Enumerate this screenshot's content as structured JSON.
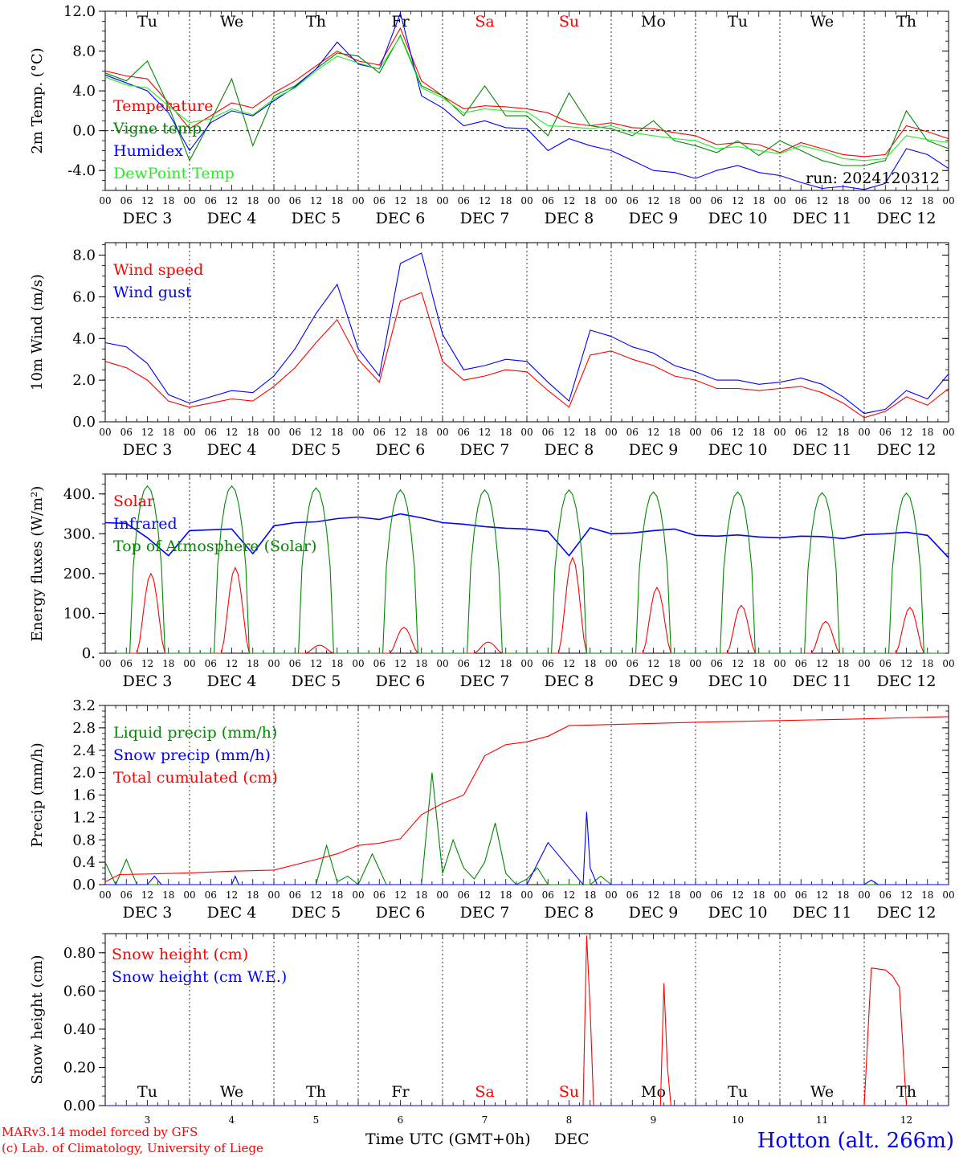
{
  "days": [
    "Tu",
    "We",
    "Th",
    "Fr",
    "Sa",
    "Su",
    "Mo",
    "Tu",
    "We",
    "Th"
  ],
  "weekend_day_indices": [
    4,
    5
  ],
  "hour_ticks": [
    "00",
    "06",
    "12",
    "18"
  ],
  "hour_end": "00",
  "dates": [
    "DEC  3",
    "DEC  4",
    "DEC  5",
    "DEC  6",
    "DEC  7",
    "DEC  8",
    "DEC  9",
    "DEC 10",
    "DEC 11",
    "DEC 12"
  ],
  "date_numbers": [
    "3",
    "4",
    "5",
    "6",
    "7",
    "8",
    "9",
    "10",
    "11",
    "12"
  ],
  "colors": {
    "red": "#ff0000",
    "green": "#008800",
    "blue": "#0000ff",
    "lightgreen": "#22ee22",
    "grid": "#000000"
  },
  "run_label": "run: 2024120312",
  "x_axis_label": "Time UTC (GMT+0h)",
  "x_axis_month": "DEC",
  "credit_line1": "MARv3.14 model forced by GFS",
  "credit_line2": "(c) Lab. of Climatology, University of Liege",
  "station": "Hotton (alt. 266m)",
  "chart_data": [
    {
      "type": "line",
      "id": "temperature",
      "ylabel": "2m Temp. (°C)",
      "ylim": [
        -6.0,
        12.0
      ],
      "yticks": [
        "12.0",
        "8.0",
        "4.0",
        "0.0",
        "-4.0"
      ],
      "ytick_values": [
        12,
        8,
        4,
        0,
        -4
      ],
      "reference_line": 0,
      "x": [
        0,
        6,
        12,
        18,
        24,
        30,
        36,
        42,
        48,
        54,
        60,
        66,
        72,
        78,
        84,
        90,
        96,
        102,
        108,
        114,
        120,
        126,
        132,
        138,
        144,
        150,
        156,
        162,
        168,
        174,
        180,
        186,
        192,
        198,
        204,
        210,
        216,
        222,
        228,
        234,
        240
      ],
      "series": [
        {
          "name": "Temperature",
          "color": "red",
          "values": [
            6.0,
            5.5,
            5.2,
            2.8,
            0.2,
            1.5,
            2.8,
            2.3,
            3.8,
            5.0,
            6.5,
            8.0,
            7.0,
            6.6,
            10.3,
            5.0,
            3.5,
            2.2,
            2.5,
            2.4,
            2.2,
            1.8,
            0.8,
            0.5,
            0.8,
            0.3,
            0.2,
            -0.2,
            -0.5,
            -1.4,
            -1.2,
            -1.4,
            -2.2,
            -1.2,
            -1.8,
            -2.4,
            -2.6,
            -2.4,
            0.5,
            -0.1,
            -0.8
          ]
        },
        {
          "name": "Vigne temp",
          "color": "green",
          "values": [
            5.8,
            5.0,
            7.0,
            2.5,
            -3.0,
            1.0,
            5.2,
            -1.5,
            3.5,
            4.5,
            6.2,
            7.8,
            7.5,
            5.8,
            9.6,
            4.5,
            3.5,
            1.5,
            4.5,
            1.5,
            1.5,
            -0.5,
            3.8,
            0.5,
            0.2,
            -0.5,
            1.0,
            -1.0,
            -1.5,
            -2.2,
            -1.0,
            -2.5,
            -1.0,
            -2.0,
            -3.0,
            -3.5,
            -3.5,
            -3.0,
            2.0,
            -1.0,
            -1.8
          ]
        },
        {
          "name": "Humidex",
          "color": "blue",
          "values": [
            5.6,
            4.8,
            4.0,
            1.8,
            -2.0,
            0.8,
            2.0,
            1.5,
            3.0,
            4.4,
            6.2,
            8.9,
            6.7,
            6.2,
            11.8,
            3.5,
            2.3,
            0.5,
            1.0,
            0.3,
            0.2,
            -2.0,
            -0.8,
            -1.5,
            -2.0,
            -3.0,
            -4.0,
            -4.2,
            -4.8,
            -4.0,
            -3.5,
            -4.2,
            -4.5,
            -5.2,
            -5.8,
            -5.6,
            -5.9,
            -5.3,
            -1.8,
            -2.4,
            -3.8
          ]
        },
        {
          "name": "DewPoint Temp",
          "color": "lightgreen",
          "values": [
            5.4,
            4.6,
            4.3,
            2.5,
            0.8,
            1.2,
            2.2,
            1.6,
            3.2,
            4.3,
            6.0,
            7.5,
            6.8,
            6.2,
            9.5,
            4.3,
            3.3,
            1.8,
            2.2,
            2.0,
            1.9,
            0.5,
            0.4,
            0.2,
            0.5,
            -0.2,
            -0.5,
            -0.8,
            -1.0,
            -1.8,
            -1.6,
            -2.0,
            -2.3,
            -1.5,
            -2.0,
            -2.8,
            -3.0,
            -2.8,
            -0.5,
            -0.9,
            -1.2
          ]
        }
      ]
    },
    {
      "type": "line",
      "id": "wind",
      "ylabel": "10m Wind (m/s)",
      "ylim": [
        0.0,
        8.6
      ],
      "yticks": [
        "8.0",
        "6.0",
        "4.0",
        "2.0",
        "0.0"
      ],
      "ytick_values": [
        8,
        6,
        4,
        2,
        0
      ],
      "reference_line": 5,
      "x": [
        0,
        6,
        12,
        18,
        24,
        30,
        36,
        42,
        48,
        54,
        60,
        66,
        72,
        78,
        84,
        90,
        96,
        102,
        108,
        114,
        120,
        126,
        132,
        138,
        144,
        150,
        156,
        162,
        168,
        174,
        180,
        186,
        192,
        198,
        204,
        210,
        216,
        222,
        228,
        234,
        240
      ],
      "series": [
        {
          "name": "Wind speed",
          "color": "red",
          "values": [
            2.9,
            2.6,
            2.0,
            1.0,
            0.7,
            0.9,
            1.1,
            1.0,
            1.7,
            2.6,
            3.8,
            4.9,
            3.0,
            1.9,
            5.8,
            6.2,
            2.9,
            2.0,
            2.2,
            2.5,
            2.4,
            1.5,
            0.7,
            3.2,
            3.4,
            3.0,
            2.7,
            2.2,
            2.0,
            1.6,
            1.6,
            1.5,
            1.6,
            1.7,
            1.4,
            0.9,
            0.2,
            0.5,
            1.2,
            0.8,
            1.6
          ]
        },
        {
          "name": "Wind gust",
          "color": "blue",
          "values": [
            3.8,
            3.6,
            2.8,
            1.3,
            0.9,
            1.2,
            1.5,
            1.4,
            2.2,
            3.5,
            5.2,
            6.6,
            3.5,
            2.2,
            7.6,
            8.1,
            4.2,
            2.5,
            2.7,
            3.0,
            2.9,
            1.9,
            1.0,
            4.4,
            4.1,
            3.6,
            3.3,
            2.7,
            2.4,
            2.0,
            2.0,
            1.8,
            1.9,
            2.1,
            1.8,
            1.2,
            0.4,
            0.6,
            1.5,
            1.1,
            2.3
          ]
        }
      ]
    },
    {
      "type": "line",
      "id": "energy",
      "ylabel": "Energy fluxes (W/m²)",
      "ylim": [
        0,
        450
      ],
      "yticks": [
        "400.",
        "300.",
        "200.",
        "100.",
        "0."
      ],
      "ytick_values": [
        400,
        300,
        200,
        100,
        0
      ],
      "series": [
        {
          "name": "Solar",
          "color": "red",
          "daily_peaks": [
            200,
            215,
            20,
            65,
            28,
            240,
            165,
            120,
            80,
            115
          ],
          "peak_hour": 13
        },
        {
          "name": "Infrared",
          "color": "blue",
          "x": [
            0,
            6,
            12,
            18,
            24,
            30,
            36,
            42,
            48,
            54,
            60,
            66,
            72,
            78,
            84,
            90,
            96,
            102,
            108,
            114,
            120,
            126,
            132,
            138,
            144,
            150,
            156,
            162,
            168,
            174,
            180,
            186,
            192,
            198,
            204,
            210,
            216,
            222,
            228,
            234,
            240
          ],
          "values": [
            328,
            326,
            290,
            245,
            308,
            310,
            312,
            250,
            320,
            328,
            330,
            338,
            342,
            336,
            350,
            340,
            328,
            324,
            318,
            314,
            312,
            306,
            245,
            315,
            300,
            302,
            308,
            312,
            296,
            294,
            297,
            292,
            290,
            294,
            293,
            288,
            298,
            300,
            304,
            296,
            240
          ]
        },
        {
          "name": "Top of Atmosphere (Solar)",
          "color": "green",
          "daily_peaks": [
            420,
            420,
            415,
            410,
            410,
            410,
            405,
            405,
            403,
            402
          ],
          "peak_hour": 12
        }
      ]
    },
    {
      "type": "line",
      "id": "precip",
      "ylabel": "Precip (mm/h)",
      "ylim": [
        0.0,
        3.2
      ],
      "yticks": [
        "3.2",
        "2.8",
        "2.4",
        "2.0",
        "1.6",
        "1.2",
        "0.8",
        "0.4",
        "0.0"
      ],
      "ytick_values": [
        3.2,
        2.8,
        2.4,
        2.0,
        1.6,
        1.2,
        0.8,
        0.4,
        0.0
      ],
      "series": [
        {
          "name": "Liquid precip (mm/h)",
          "color": "green",
          "x": [
            0,
            3,
            6,
            9,
            12,
            18,
            24,
            60,
            63,
            66,
            69,
            72,
            76,
            80,
            84,
            90,
            93,
            96,
            99,
            102,
            105,
            108,
            111,
            114,
            117,
            120,
            123,
            126,
            132,
            138,
            141,
            144,
            150,
            240
          ],
          "values": [
            0.4,
            0.0,
            0.45,
            0.0,
            0.0,
            0.0,
            0.0,
            0.0,
            0.7,
            0.05,
            0.15,
            0.0,
            0.55,
            0.0,
            0.0,
            0.0,
            2.0,
            0.2,
            0.8,
            0.3,
            0.1,
            0.4,
            1.1,
            0.2,
            0.0,
            0.1,
            0.3,
            0.0,
            0.0,
            0.0,
            0.15,
            0.0,
            0.0,
            0.0
          ]
        },
        {
          "name": "Snow precip (mm/h)",
          "color": "blue",
          "x": [
            0,
            12,
            14,
            16,
            18,
            36,
            37,
            38,
            120,
            126,
            136,
            137,
            138,
            140,
            150,
            216,
            218,
            220,
            240
          ],
          "values": [
            0.0,
            0.0,
            0.15,
            0.0,
            0.0,
            0.0,
            0.15,
            0.0,
            0.0,
            0.75,
            0.0,
            1.3,
            0.3,
            0.0,
            0.0,
            0.0,
            0.08,
            0.0,
            0.0
          ]
        },
        {
          "name": "Total cumulated (cm)",
          "color": "red",
          "x": [
            0,
            4,
            12,
            24,
            36,
            48,
            60,
            66,
            72,
            78,
            84,
            90,
            96,
            102,
            108,
            114,
            120,
            126,
            132,
            138,
            144,
            168,
            192,
            216,
            240
          ],
          "values": [
            0.05,
            0.18,
            0.19,
            0.21,
            0.24,
            0.26,
            0.45,
            0.55,
            0.7,
            0.74,
            0.82,
            1.25,
            1.45,
            1.6,
            2.3,
            2.5,
            2.55,
            2.65,
            2.84,
            2.85,
            2.86,
            2.9,
            2.93,
            2.96,
            3.0
          ]
        }
      ]
    },
    {
      "type": "line",
      "id": "snow",
      "ylabel": "Snow height (cm)",
      "ylim": [
        0.0,
        0.9
      ],
      "yticks": [
        "0.80",
        "0.60",
        "0.40",
        "0.20",
        "0.00"
      ],
      "ytick_values": [
        0.8,
        0.6,
        0.4,
        0.2,
        0.0
      ],
      "series": [
        {
          "name": "Snow height (cm)",
          "color": "red",
          "x": [
            0,
            136,
            137,
            138,
            139,
            158,
            159,
            160,
            161,
            216,
            218,
            222,
            224,
            226,
            228,
            240
          ],
          "values": [
            0,
            0,
            0.89,
            0.5,
            0,
            0,
            0.64,
            0.2,
            0,
            0,
            0.72,
            0.71,
            0.68,
            0.62,
            0,
            0
          ]
        },
        {
          "name": "Snow height (cm W.E.)",
          "color": "blue",
          "x": [
            0,
            240
          ],
          "values": [
            0,
            0
          ]
        }
      ]
    }
  ]
}
